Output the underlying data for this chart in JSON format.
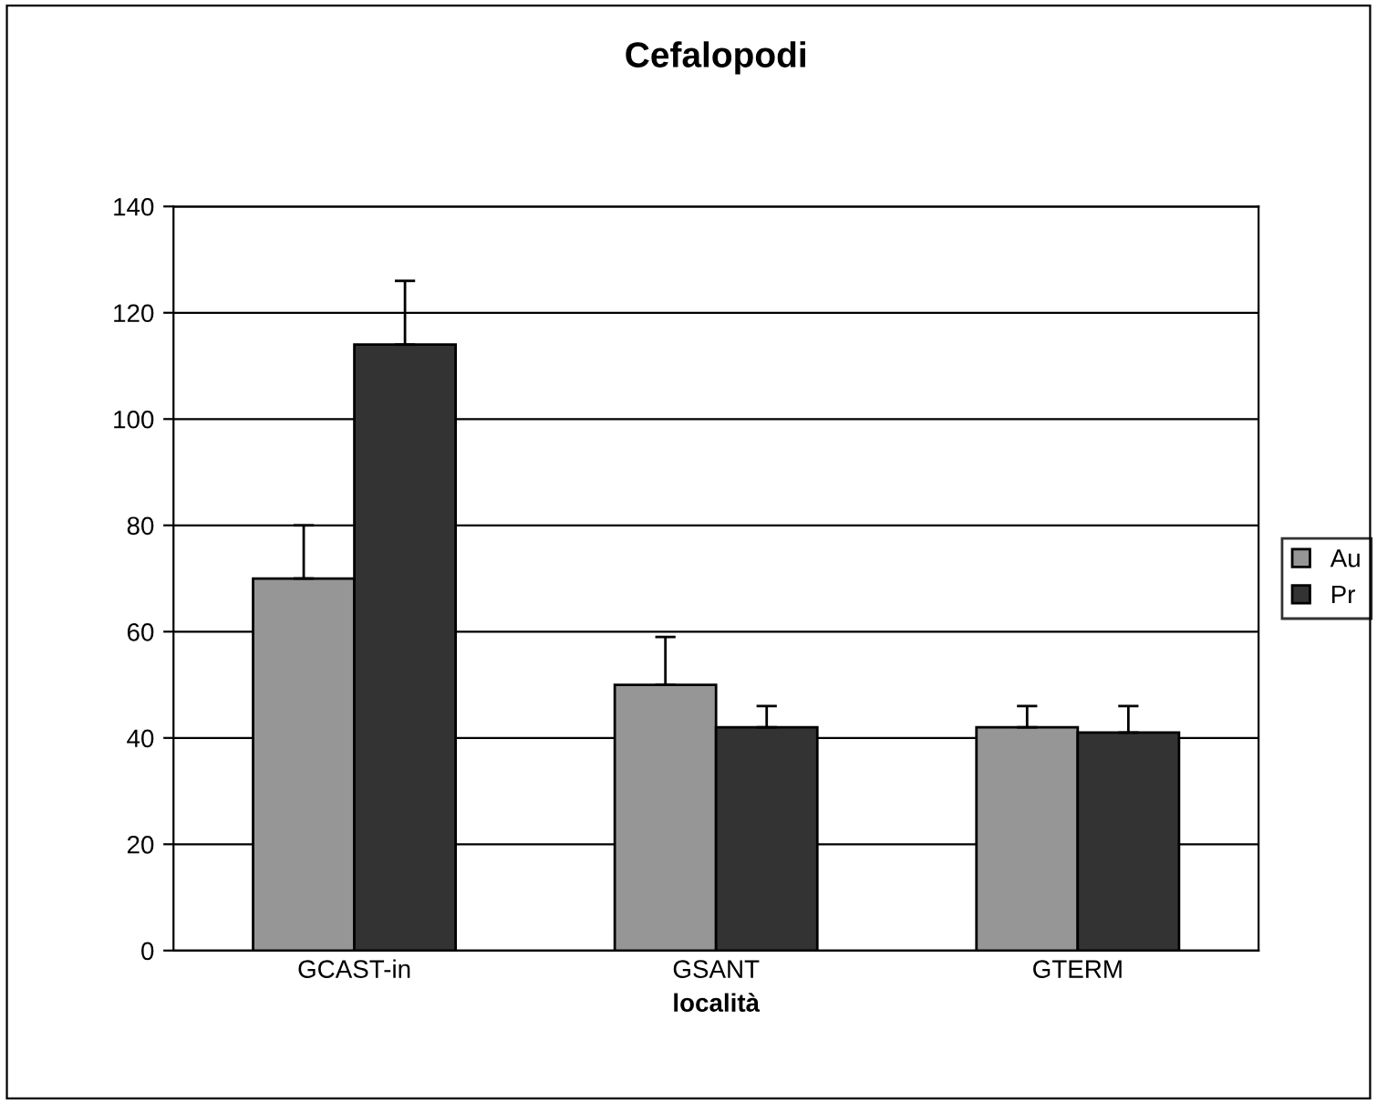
{
  "chart_data": {
    "type": "bar",
    "title": "Cefalopodi",
    "xlabel": "località",
    "categories": [
      "GCAST-in",
      "GSANT",
      "GTERM"
    ],
    "series": [
      {
        "name": "Au",
        "color": "#969696",
        "values": [
          70,
          50,
          42
        ],
        "errors": [
          10,
          9,
          4
        ]
      },
      {
        "name": "Pr",
        "color": "#333333",
        "values": [
          114,
          42,
          41
        ],
        "errors": [
          12,
          4,
          5
        ]
      }
    ],
    "ylim": [
      0,
      140
    ],
    "yticks": [
      0,
      20,
      40,
      60,
      80,
      100,
      120,
      140
    ],
    "grid": "y",
    "legend": "right"
  }
}
